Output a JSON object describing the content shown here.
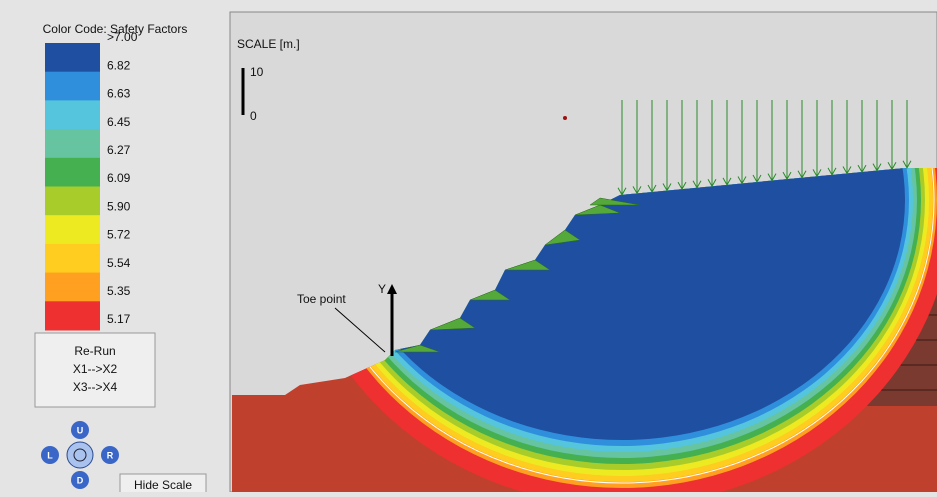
{
  "legend": {
    "title": "Color Code: Safety Factors",
    "labels": [
      ">7.00",
      "6.82",
      "6.63",
      "6.45",
      "6.27",
      "6.09",
      "5.90",
      "5.72",
      "5.54",
      "5.35",
      "5.17"
    ],
    "colors": [
      "#1f4fa0",
      "#2f8fdd",
      "#55c5dd",
      "#66c4a0",
      "#44b050",
      "#a8cc2a",
      "#eeea22",
      "#ffcc20",
      "#ffa020",
      "#ee3030"
    ]
  },
  "buttons": {
    "rerun": [
      "Re-Run",
      "X1-->X2",
      "X3-->X4"
    ],
    "hide_scale": "Hide Scale"
  },
  "nav": {
    "up": "U",
    "left": "L",
    "right": "R",
    "down": "D"
  },
  "canvas": {
    "scale_title": "SCALE [m.]",
    "scale_max": "10",
    "scale_min": "0",
    "toe_label": "Toe point",
    "axis_label": "Y"
  }
}
